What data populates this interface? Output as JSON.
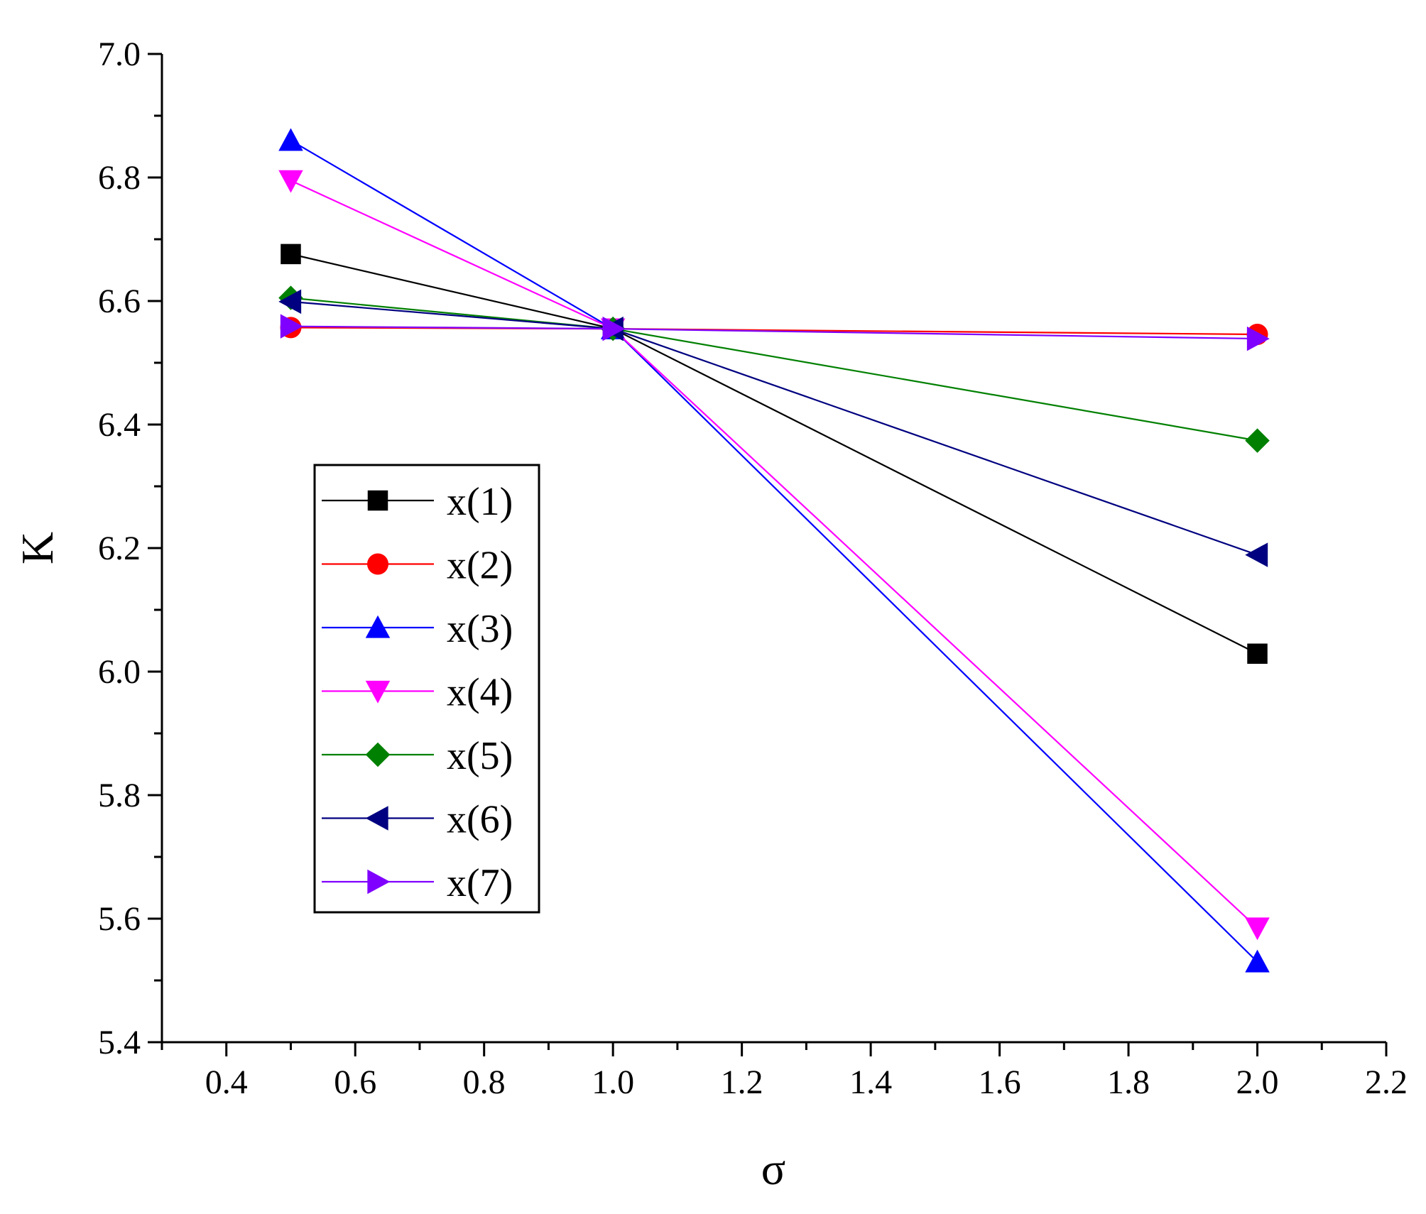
{
  "chart_data": {
    "type": "line",
    "title": "",
    "xlabel": "σ",
    "ylabel": "K",
    "xlim": [
      0.3,
      2.2
    ],
    "ylim": [
      5.4,
      7.0
    ],
    "x_ticks": [
      "0.4",
      "0.6",
      "0.8",
      "1.0",
      "1.2",
      "1.4",
      "1.6",
      "1.8",
      "2.0",
      "2.2"
    ],
    "y_ticks": [
      "5.4",
      "5.6",
      "5.8",
      "6.0",
      "6.2",
      "6.4",
      "6.6",
      "6.8",
      "7.0"
    ],
    "grid": false,
    "legend_position": "center-left",
    "x": [
      0.5,
      1.0,
      2.0
    ],
    "series": [
      {
        "name": "x(1)",
        "values": [
          6.676,
          6.555,
          6.029
        ],
        "color": "#000000",
        "marker": "square"
      },
      {
        "name": "x(2)",
        "values": [
          6.557,
          6.555,
          6.546
        ],
        "color": "#ff0000",
        "marker": "circle"
      },
      {
        "name": "x(3)",
        "values": [
          6.86,
          6.555,
          5.53
        ],
        "color": "#0000ff",
        "marker": "triangle-up"
      },
      {
        "name": "x(4)",
        "values": [
          6.795,
          6.555,
          5.585
        ],
        "color": "#ff00ff",
        "marker": "triangle-down"
      },
      {
        "name": "x(5)",
        "values": [
          6.605,
          6.555,
          6.374
        ],
        "color": "#008000",
        "marker": "diamond"
      },
      {
        "name": "x(6)",
        "values": [
          6.599,
          6.555,
          6.189
        ],
        "color": "#000080",
        "marker": "triangle-left"
      },
      {
        "name": "x(7)",
        "values": [
          6.559,
          6.555,
          6.539
        ],
        "color": "#8000ff",
        "marker": "triangle-right"
      }
    ]
  }
}
